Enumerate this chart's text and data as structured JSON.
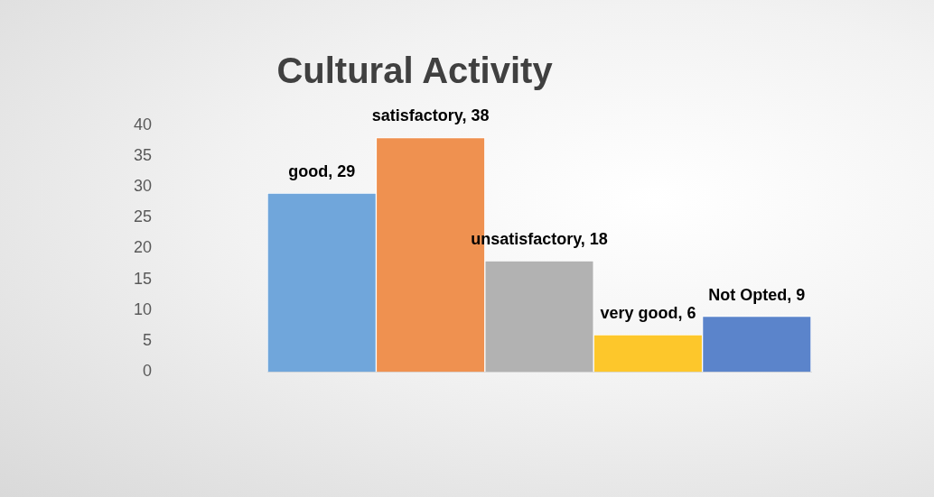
{
  "chart_data": {
    "type": "bar",
    "title": "Cultural Activity",
    "categories": [
      null,
      null,
      null,
      null,
      null
    ],
    "values": [
      29,
      38,
      18,
      6,
      9
    ],
    "colors": [
      "#70a6db",
      "#ef9150",
      "#b2b2b2",
      "#fdc72b",
      "#5b84cb"
    ],
    "value_labels": [
      "good, 29",
      "satisfactory, 38",
      "unsatisfactory, 18",
      "very good, 6",
      "Not Opted, 9"
    ],
    "ylim": [
      0,
      40
    ],
    "yticks": [
      0,
      5,
      10,
      15,
      20,
      25,
      30,
      35,
      40
    ],
    "grid": false,
    "legend": false
  }
}
